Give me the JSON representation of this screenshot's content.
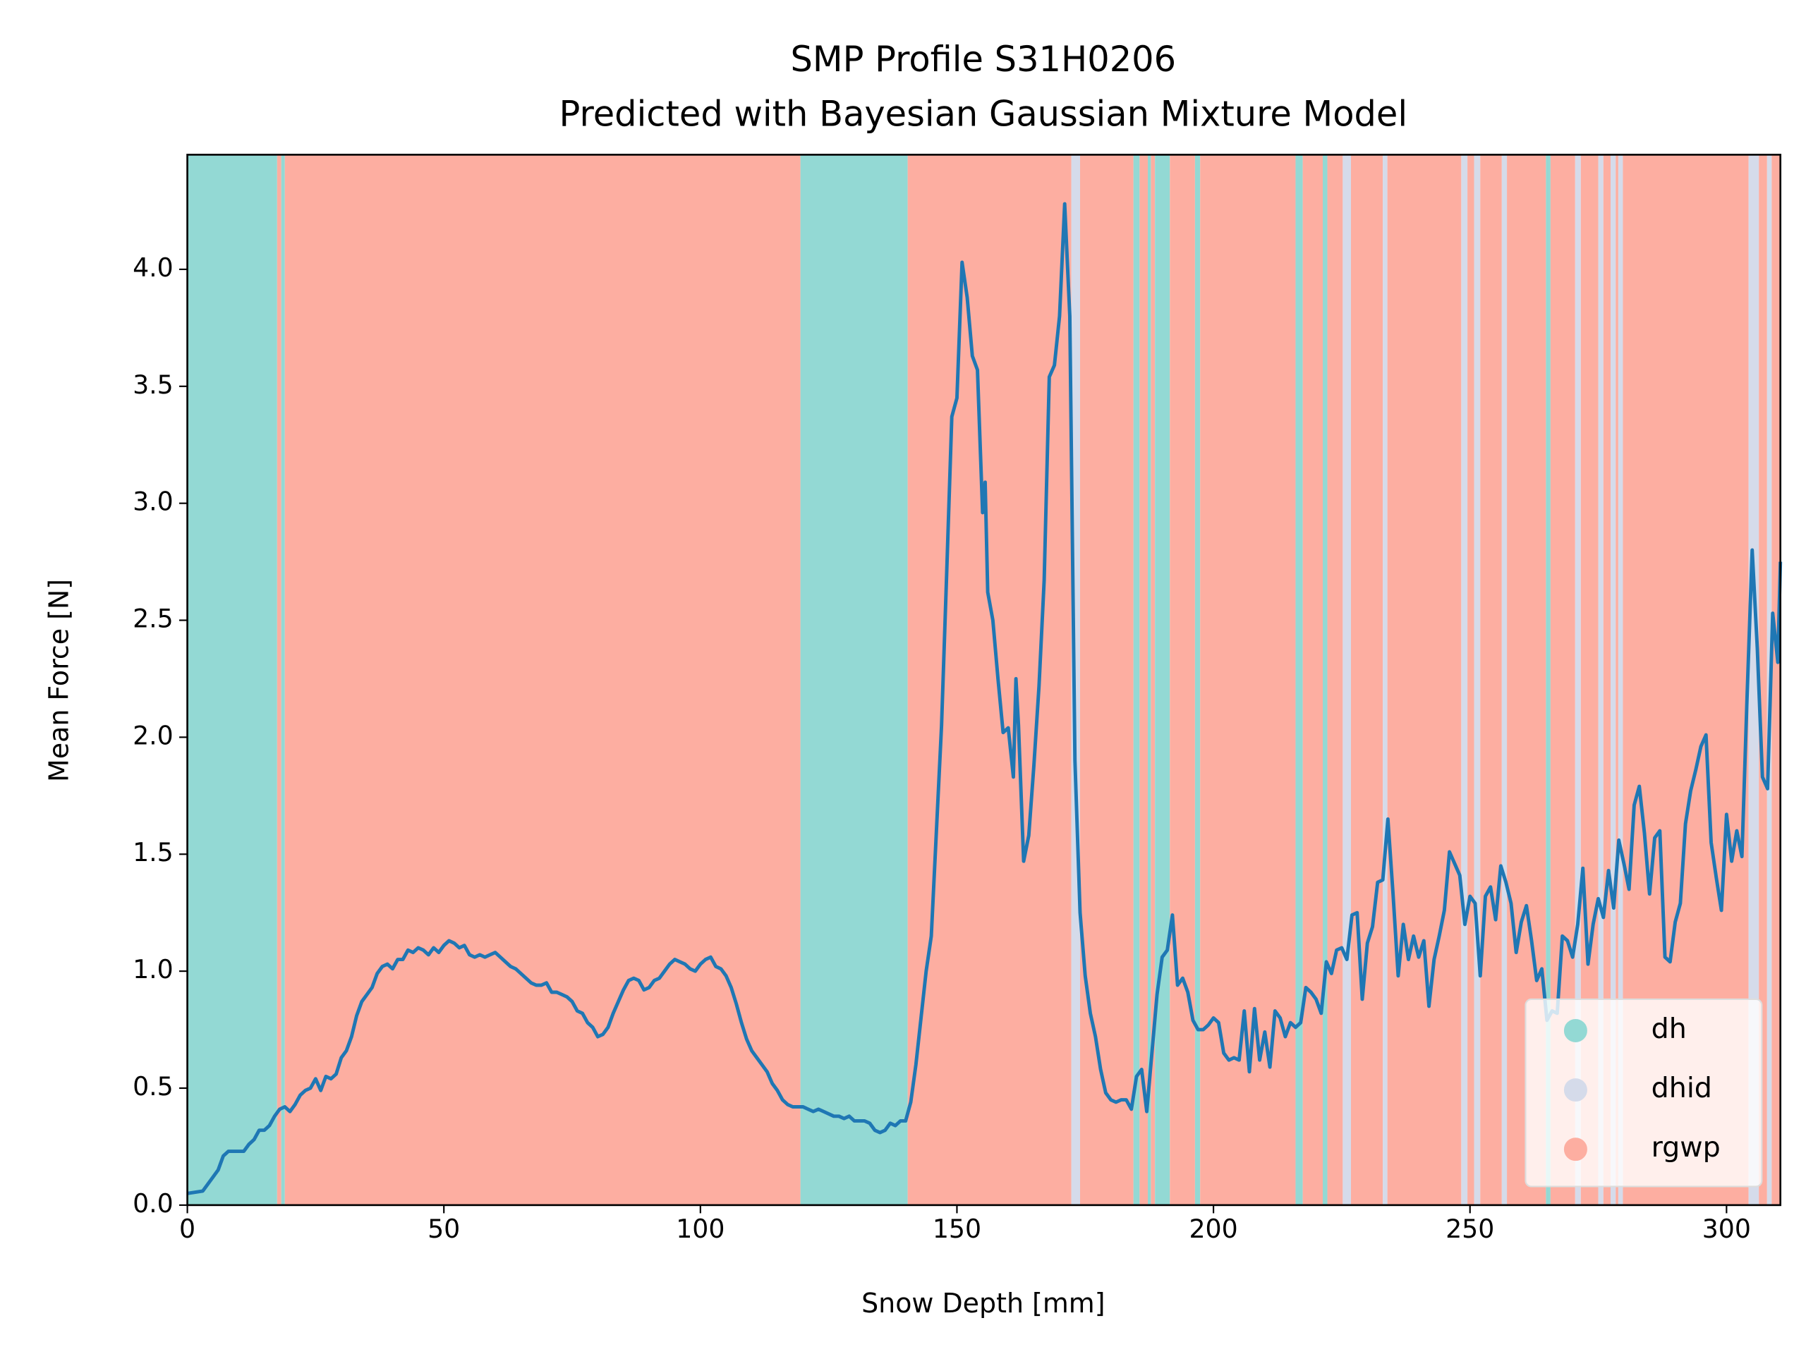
{
  "chart_data": {
    "type": "line",
    "title": "SMP Profile S31H0206",
    "subtitle": "Predicted with Bayesian Gaussian Mixture Model",
    "x_label": "Snow Depth [mm]",
    "y_label": "Mean Force [N]",
    "xlim": [
      0,
      310.5
    ],
    "ylim": [
      0,
      4.49
    ],
    "xticks": [
      0,
      50,
      100,
      150,
      200,
      250,
      300
    ],
    "yticks": [
      {
        "value": 0,
        "label": "0.0"
      },
      0.5,
      {
        "value": 1,
        "label": "1.0"
      },
      1.5,
      {
        "value": 2,
        "label": "2.0"
      },
      2.5,
      {
        "value": 3,
        "label": "3.0"
      },
      3.5,
      {
        "value": 4,
        "label": "4.0"
      }
    ],
    "legend": "lower right",
    "color": "#1f77b4",
    "classes": [
      {
        "name": "dh",
        "color": "#93d9d4"
      },
      {
        "name": "dhid",
        "color": "#d5dbea"
      },
      {
        "name": "rgwp",
        "color": "#fdaea1"
      }
    ],
    "segments": [
      {
        "start": 0,
        "end": 17.5,
        "class": "dh"
      },
      {
        "start": 17.5,
        "end": 18.3,
        "class": "rgwp"
      },
      {
        "start": 18.3,
        "end": 19.0,
        "class": "dh"
      },
      {
        "start": 19.0,
        "end": 119.5,
        "class": "rgwp"
      },
      {
        "start": 119.5,
        "end": 140.4,
        "class": "dh"
      },
      {
        "start": 140.4,
        "end": 172.3,
        "class": "rgwp"
      },
      {
        "start": 172.3,
        "end": 174.0,
        "class": "dhid"
      },
      {
        "start": 174.0,
        "end": 184.4,
        "class": "rgwp"
      },
      {
        "start": 184.4,
        "end": 185.6,
        "class": "dh"
      },
      {
        "start": 185.6,
        "end": 187.2,
        "class": "rgwp"
      },
      {
        "start": 187.2,
        "end": 187.8,
        "class": "dh"
      },
      {
        "start": 187.8,
        "end": 188.6,
        "class": "rgwp"
      },
      {
        "start": 188.6,
        "end": 191.5,
        "class": "dh"
      },
      {
        "start": 191.5,
        "end": 196.4,
        "class": "rgwp"
      },
      {
        "start": 196.4,
        "end": 197.4,
        "class": "dh"
      },
      {
        "start": 197.4,
        "end": 216.0,
        "class": "rgwp"
      },
      {
        "start": 216.0,
        "end": 217.4,
        "class": "dh"
      },
      {
        "start": 217.4,
        "end": 221.3,
        "class": "rgwp"
      },
      {
        "start": 221.3,
        "end": 222.2,
        "class": "dh"
      },
      {
        "start": 222.2,
        "end": 225.2,
        "class": "rgwp"
      },
      {
        "start": 225.2,
        "end": 226.8,
        "class": "dhid"
      },
      {
        "start": 226.8,
        "end": 233.0,
        "class": "rgwp"
      },
      {
        "start": 233.0,
        "end": 233.9,
        "class": "dhid"
      },
      {
        "start": 233.9,
        "end": 248.3,
        "class": "rgwp"
      },
      {
        "start": 248.3,
        "end": 249.5,
        "class": "dhid"
      },
      {
        "start": 249.5,
        "end": 250.8,
        "class": "rgwp"
      },
      {
        "start": 250.8,
        "end": 252.0,
        "class": "dhid"
      },
      {
        "start": 252.0,
        "end": 256.2,
        "class": "rgwp"
      },
      {
        "start": 256.2,
        "end": 257.2,
        "class": "dhid"
      },
      {
        "start": 257.2,
        "end": 264.8,
        "class": "rgwp"
      },
      {
        "start": 264.8,
        "end": 265.7,
        "class": "dh"
      },
      {
        "start": 265.7,
        "end": 270.5,
        "class": "rgwp"
      },
      {
        "start": 270.5,
        "end": 271.6,
        "class": "dhid"
      },
      {
        "start": 271.6,
        "end": 275.0,
        "class": "rgwp"
      },
      {
        "start": 275.0,
        "end": 276.0,
        "class": "dhid"
      },
      {
        "start": 276.0,
        "end": 277.4,
        "class": "rgwp"
      },
      {
        "start": 277.4,
        "end": 278.4,
        "class": "dhid"
      },
      {
        "start": 278.4,
        "end": 278.9,
        "class": "rgwp"
      },
      {
        "start": 278.9,
        "end": 279.8,
        "class": "dhid"
      },
      {
        "start": 279.8,
        "end": 304.3,
        "class": "rgwp"
      },
      {
        "start": 304.3,
        "end": 306.3,
        "class": "dhid"
      },
      {
        "start": 306.3,
        "end": 307.9,
        "class": "rgwp"
      },
      {
        "start": 307.9,
        "end": 308.8,
        "class": "dhid"
      },
      {
        "start": 308.8,
        "end": 310.5,
        "class": "rgwp"
      }
    ],
    "x": [
      0,
      3,
      5,
      6,
      7,
      8,
      10,
      11,
      12,
      13,
      14,
      15,
      16,
      17,
      18,
      19,
      20,
      21,
      22,
      23,
      24,
      25,
      26,
      27,
      28,
      29,
      30,
      31,
      32,
      33,
      34,
      35,
      36,
      37,
      38,
      39,
      40,
      41,
      42,
      43,
      44,
      45,
      46,
      47,
      48,
      49,
      50,
      51,
      52,
      53,
      54,
      55,
      56,
      57,
      58,
      59,
      60,
      61,
      62,
      63,
      64,
      65,
      66,
      67,
      68,
      69,
      70,
      71,
      72,
      73,
      74,
      75,
      76,
      77,
      78,
      79,
      80,
      81,
      82,
      83,
      84,
      85,
      86,
      87,
      88,
      89,
      90,
      91,
      92,
      93,
      94,
      95,
      96,
      97,
      98,
      99,
      100,
      101,
      102,
      103,
      104,
      105,
      106,
      107,
      108,
      109,
      110,
      111,
      112,
      113,
      114,
      115,
      116,
      117,
      118,
      119,
      120,
      121,
      122,
      123,
      124,
      125,
      126,
      127,
      128,
      129,
      130,
      131,
      132,
      133,
      134,
      135,
      136,
      137,
      138,
      139,
      140,
      141,
      142,
      143,
      144,
      145,
      146,
      147,
      148,
      149,
      150,
      151,
      152,
      153,
      154,
      155,
      155.5,
      156,
      157,
      158,
      159,
      160,
      161,
      161.5,
      162,
      163,
      164,
      165,
      166,
      167,
      168,
      169,
      170,
      171,
      172,
      173,
      174,
      175,
      176,
      177,
      178,
      179,
      180,
      181,
      182,
      183,
      184,
      185,
      186,
      187,
      188,
      189,
      190,
      191,
      192,
      193,
      194,
      195,
      196,
      197,
      198,
      199,
      200,
      201,
      202,
      203,
      204,
      205,
      206,
      207,
      208,
      209,
      210,
      211,
      212,
      213,
      214,
      215,
      216,
      217,
      218,
      219,
      220,
      221,
      222,
      223,
      224,
      225,
      226,
      227,
      228,
      229,
      230,
      231,
      232,
      233,
      234,
      235,
      236,
      237,
      238,
      239,
      240,
      241,
      242,
      243,
      244,
      245,
      246,
      247,
      248,
      249,
      250,
      251,
      252,
      253,
      254,
      255,
      256,
      257,
      258,
      259,
      260,
      261,
      262,
      263,
      264,
      265,
      266,
      267,
      268,
      269,
      270,
      271,
      272,
      273,
      274,
      275,
      276,
      277,
      278,
      279,
      280,
      281,
      282,
      283,
      284,
      285,
      286,
      287,
      288,
      289,
      290,
      291,
      292,
      293,
      294,
      295,
      296,
      297,
      298,
      299,
      300,
      301,
      302,
      303,
      304,
      305,
      306,
      307,
      308,
      309,
      310,
      310.5
    ],
    "values": [
      0.05,
      0.06,
      0.12,
      0.15,
      0.21,
      0.23,
      0.23,
      0.23,
      0.26,
      0.28,
      0.32,
      0.32,
      0.34,
      0.38,
      0.41,
      0.42,
      0.4,
      0.43,
      0.47,
      0.49,
      0.5,
      0.54,
      0.49,
      0.55,
      0.54,
      0.56,
      0.63,
      0.66,
      0.72,
      0.81,
      0.87,
      0.9,
      0.93,
      0.99,
      1.02,
      1.03,
      1.01,
      1.05,
      1.05,
      1.09,
      1.08,
      1.1,
      1.09,
      1.07,
      1.1,
      1.08,
      1.11,
      1.13,
      1.12,
      1.1,
      1.11,
      1.07,
      1.06,
      1.07,
      1.06,
      1.07,
      1.08,
      1.06,
      1.04,
      1.02,
      1.01,
      0.99,
      0.97,
      0.95,
      0.94,
      0.94,
      0.95,
      0.91,
      0.91,
      0.9,
      0.89,
      0.87,
      0.83,
      0.82,
      0.78,
      0.76,
      0.72,
      0.73,
      0.76,
      0.82,
      0.87,
      0.92,
      0.96,
      0.97,
      0.96,
      0.92,
      0.93,
      0.96,
      0.97,
      1.0,
      1.03,
      1.05,
      1.04,
      1.03,
      1.01,
      1.0,
      1.03,
      1.05,
      1.06,
      1.02,
      1.01,
      0.98,
      0.93,
      0.86,
      0.78,
      0.71,
      0.66,
      0.63,
      0.6,
      0.57,
      0.52,
      0.49,
      0.45,
      0.43,
      0.42,
      0.42,
      0.42,
      0.41,
      0.4,
      0.41,
      0.4,
      0.39,
      0.38,
      0.38,
      0.37,
      0.38,
      0.36,
      0.36,
      0.36,
      0.35,
      0.32,
      0.31,
      0.32,
      0.35,
      0.34,
      0.36,
      0.36,
      0.44,
      0.6,
      0.8,
      1.0,
      1.15,
      1.6,
      2.05,
      2.7,
      3.37,
      3.45,
      4.03,
      3.88,
      3.63,
      3.57,
      2.96,
      3.09,
      2.62,
      2.5,
      2.25,
      2.02,
      2.04,
      1.83,
      2.25,
      2.05,
      1.47,
      1.58,
      1.88,
      2.22,
      2.67,
      3.54,
      3.59,
      3.8,
      4.28,
      3.8,
      1.9,
      1.25,
      0.98,
      0.82,
      0.72,
      0.58,
      0.48,
      0.45,
      0.44,
      0.45,
      0.45,
      0.41,
      0.55,
      0.58,
      0.4,
      0.65,
      0.9,
      1.06,
      1.09,
      1.24,
      0.94,
      0.97,
      0.91,
      0.79,
      0.75,
      0.75,
      0.77,
      0.8,
      0.78,
      0.65,
      0.62,
      0.63,
      0.62,
      0.83,
      0.57,
      0.84,
      0.62,
      0.74,
      0.59,
      0.83,
      0.8,
      0.72,
      0.78,
      0.76,
      0.78,
      0.93,
      0.91,
      0.88,
      0.82,
      1.04,
      0.99,
      1.09,
      1.1,
      1.05,
      1.24,
      1.25,
      0.88,
      1.12,
      1.19,
      1.38,
      1.39,
      1.65,
      1.33,
      0.98,
      1.2,
      1.05,
      1.15,
      1.06,
      1.13,
      0.85,
      1.05,
      1.15,
      1.26,
      1.51,
      1.46,
      1.41,
      1.2,
      1.32,
      1.29,
      0.98,
      1.32,
      1.36,
      1.22,
      1.45,
      1.38,
      1.29,
      1.08,
      1.21,
      1.28,
      1.13,
      0.96,
      1.01,
      0.79,
      0.83,
      0.82,
      1.15,
      1.13,
      1.06,
      1.2,
      1.44,
      1.03,
      1.2,
      1.31,
      1.23,
      1.43,
      1.27,
      1.56,
      1.46,
      1.35,
      1.71,
      1.79,
      1.59,
      1.33,
      1.57,
      1.6,
      1.06,
      1.04,
      1.21,
      1.29,
      1.63,
      1.77,
      1.86,
      1.96,
      2.01,
      1.55,
      1.4,
      1.26,
      1.67,
      1.47,
      1.6,
      1.49,
      2.17,
      2.8,
      2.38,
      1.83,
      1.78,
      2.53,
      2.32,
      2.75
    ]
  }
}
